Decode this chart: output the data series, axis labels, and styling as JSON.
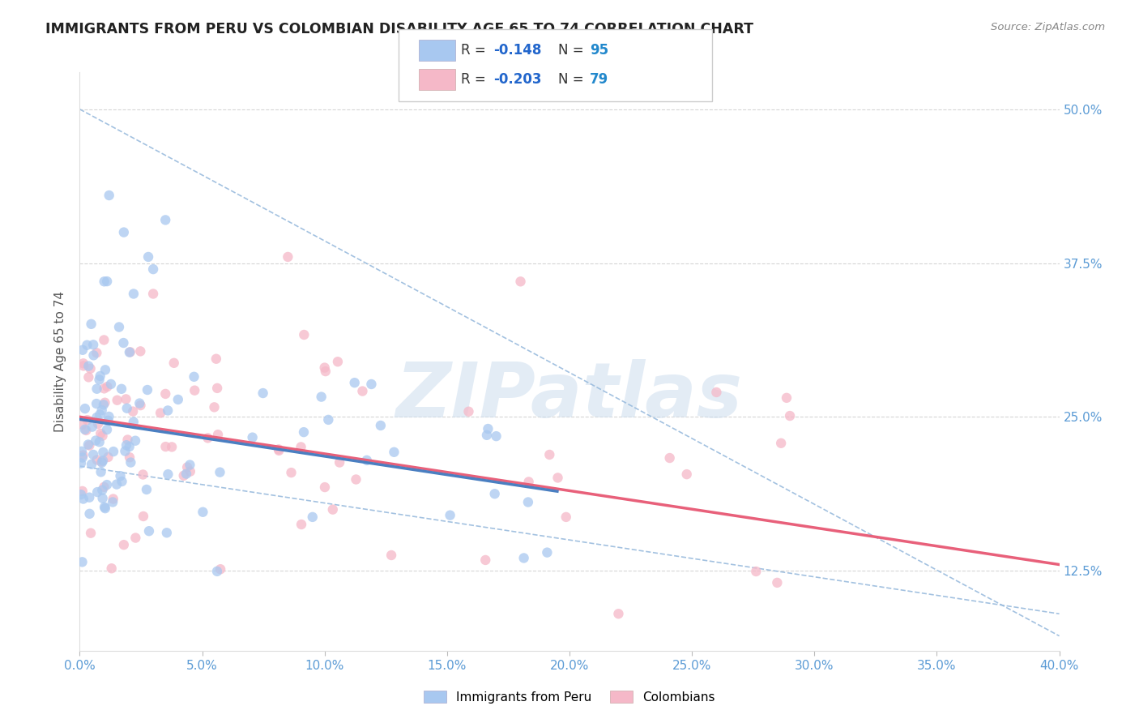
{
  "title": "IMMIGRANTS FROM PERU VS COLOMBIAN DISABILITY AGE 65 TO 74 CORRELATION CHART",
  "source_text": "Source: ZipAtlas.com",
  "ylabel": "Disability Age 65 to 74",
  "xlim": [
    0.0,
    40.0
  ],
  "ylim": [
    6.0,
    53.0
  ],
  "xtick_vals": [
    0.0,
    5.0,
    10.0,
    15.0,
    20.0,
    25.0,
    30.0,
    35.0,
    40.0
  ],
  "ytick_vals": [
    12.5,
    25.0,
    37.5,
    50.0
  ],
  "series1_label": "Immigrants from Peru",
  "series1_color": "#a8c8f0",
  "series1_line_color": "#4a7fc1",
  "series1_R": "-0.148",
  "series1_N": "95",
  "series2_label": "Colombians",
  "series2_color": "#f5b8c8",
  "series2_line_color": "#e8607a",
  "series2_R": "-0.203",
  "series2_N": "79",
  "watermark": "ZIPatlas",
  "background_color": "#ffffff",
  "grid_color": "#cccccc",
  "title_color": "#222222",
  "tick_color": "#5b9bd5",
  "ylabel_color": "#555555",
  "legend_R_color": "#2266cc",
  "legend_N_color": "#2288cc",
  "dashed_line_color": "#99bbdd"
}
